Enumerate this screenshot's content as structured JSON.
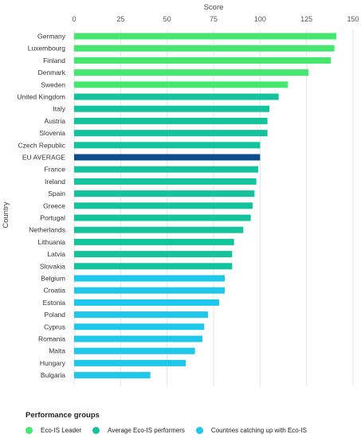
{
  "chart_data": {
    "type": "bar",
    "orientation": "horizontal",
    "title": "",
    "xlabel": "Score",
    "ylabel": "Country",
    "xlim": [
      0,
      150
    ],
    "xticks": [
      0,
      25,
      50,
      75,
      100,
      125,
      150
    ],
    "x_axis_position": "top",
    "grid": true,
    "legend_position": "bottom",
    "categories": [
      "Germany",
      "Luxembourg",
      "Finland",
      "Denmark",
      "Sweden",
      "United Kingdom",
      "Italy",
      "Austria",
      "Slovenia",
      "Czech Republic",
      "EU AVERAGE",
      "France",
      "Ireland",
      "Spain",
      "Greece",
      "Portugal",
      "Netherlands",
      "Lithuania",
      "Latvia",
      "Slovakia",
      "Belgium",
      "Croatia",
      "Estonia",
      "Poland",
      "Cyprus",
      "Romania",
      "Malta",
      "Hungary",
      "Bulgaria"
    ],
    "values": [
      141,
      140,
      138,
      126,
      115,
      110,
      105,
      104,
      104,
      100,
      100,
      99,
      98,
      97,
      96,
      95,
      91,
      86,
      85,
      85,
      81,
      81,
      78,
      72,
      70,
      69,
      65,
      60,
      41
    ],
    "groups": [
      "leader",
      "leader",
      "leader",
      "leader",
      "leader",
      "average",
      "average",
      "average",
      "average",
      "average",
      "eu",
      "average",
      "average",
      "average",
      "average",
      "average",
      "average",
      "average",
      "average",
      "average",
      "catching",
      "catching",
      "catching",
      "catching",
      "catching",
      "catching",
      "catching",
      "catching",
      "catching"
    ],
    "legend": {
      "title": "Performance groups",
      "items": [
        {
          "key": "leader",
          "label": "Eco-IS Leader"
        },
        {
          "key": "average",
          "label": "Average Eco-IS performers"
        },
        {
          "key": "catching",
          "label": "Countries catching up with Eco-IS"
        }
      ]
    },
    "colors": {
      "leader": "#45e86e",
      "average": "#13c39b",
      "eu": "#0b4d8f",
      "catching": "#1ec8ea"
    }
  }
}
